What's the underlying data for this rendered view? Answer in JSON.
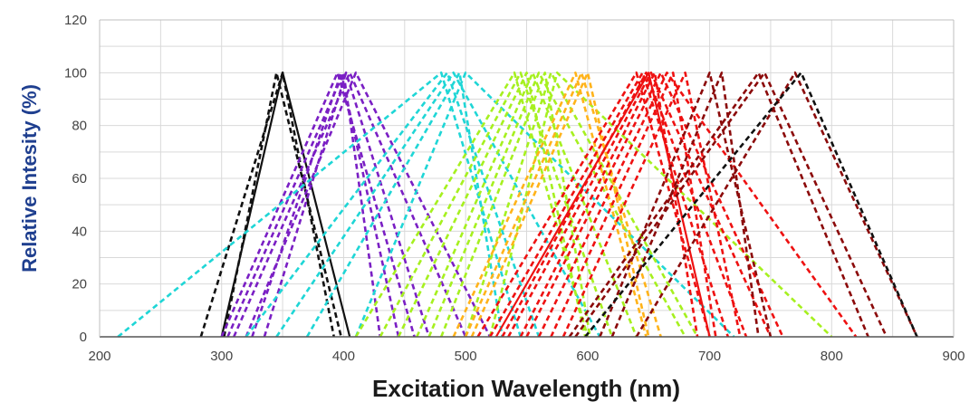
{
  "chart_data": {
    "type": "line",
    "title": "",
    "xlabel": "Excitation Wavelength (nm)",
    "ylabel": "Relative Intesity (%)",
    "xlim": [
      200,
      900
    ],
    "ylim": [
      0,
      120
    ],
    "xticks": [
      200,
      300,
      400,
      500,
      600,
      700,
      800,
      900
    ],
    "yticks": [
      0,
      20,
      40,
      60,
      80,
      100,
      120
    ],
    "grid": true,
    "legend": "none",
    "colors": {
      "axis_title": "#1f3f8f",
      "grid": "#d9d9d9",
      "black": "#111111",
      "purple": "#7a1fc4",
      "cyan": "#1fd6d6",
      "lime": "#a6f01f",
      "orange": "#ffb31a",
      "red": "#ee1111",
      "darkred": "#8b0a0a"
    },
    "series": [
      {
        "color": "black",
        "dashed": true,
        "x": [
          283,
          350,
          392
        ],
        "y": [
          0,
          100,
          0
        ]
      },
      {
        "color": "black",
        "dashed": false,
        "x": [
          300,
          350,
          405
        ],
        "y": [
          0,
          100,
          0
        ]
      },
      {
        "color": "black",
        "dashed": true,
        "x": [
          302,
          345,
          398
        ],
        "y": [
          0,
          100,
          0
        ]
      },
      {
        "color": "purple",
        "dashed": true,
        "x": [
          300,
          395,
          458
        ],
        "y": [
          0,
          100,
          0
        ]
      },
      {
        "color": "purple",
        "dashed": true,
        "x": [
          305,
          400,
          430
        ],
        "y": [
          0,
          100,
          0
        ]
      },
      {
        "color": "purple",
        "dashed": true,
        "x": [
          310,
          405,
          500
        ],
        "y": [
          0,
          100,
          0
        ]
      },
      {
        "color": "purple",
        "dashed": true,
        "x": [
          320,
          410,
          520
        ],
        "y": [
          0,
          100,
          0
        ]
      },
      {
        "color": "purple",
        "dashed": true,
        "x": [
          325,
          398,
          445
        ],
        "y": [
          0,
          100,
          0
        ]
      },
      {
        "color": "purple",
        "dashed": true,
        "x": [
          335,
          402,
          470
        ],
        "y": [
          0,
          100,
          0
        ]
      },
      {
        "color": "cyan",
        "dashed": true,
        "x": [
          215,
          480,
          545
        ],
        "y": [
          0,
          100,
          0
        ]
      },
      {
        "color": "cyan",
        "dashed": true,
        "x": [
          320,
          485,
          560
        ],
        "y": [
          0,
          100,
          0
        ]
      },
      {
        "color": "cyan",
        "dashed": true,
        "x": [
          345,
          490,
          610
        ],
        "y": [
          0,
          100,
          0
        ]
      },
      {
        "color": "cyan",
        "dashed": true,
        "x": [
          370,
          495,
          530
        ],
        "y": [
          0,
          100,
          0
        ]
      },
      {
        "color": "cyan",
        "dashed": true,
        "x": [
          410,
          500,
          720
        ],
        "y": [
          0,
          100,
          0
        ]
      },
      {
        "color": "lime",
        "dashed": true,
        "x": [
          410,
          540,
          600
        ],
        "y": [
          0,
          100,
          0
        ]
      },
      {
        "color": "lime",
        "dashed": true,
        "x": [
          430,
          545,
          620
        ],
        "y": [
          0,
          100,
          0
        ]
      },
      {
        "color": "lime",
        "dashed": true,
        "x": [
          445,
          550,
          598
        ],
        "y": [
          0,
          100,
          0
        ]
      },
      {
        "color": "lime",
        "dashed": true,
        "x": [
          460,
          555,
          640
        ],
        "y": [
          0,
          100,
          0
        ]
      },
      {
        "color": "lime",
        "dashed": true,
        "x": [
          470,
          560,
          680
        ],
        "y": [
          0,
          100,
          0
        ]
      },
      {
        "color": "lime",
        "dashed": true,
        "x": [
          480,
          565,
          602
        ],
        "y": [
          0,
          100,
          0
        ]
      },
      {
        "color": "lime",
        "dashed": true,
        "x": [
          500,
          570,
          690
        ],
        "y": [
          0,
          100,
          0
        ]
      },
      {
        "color": "lime",
        "dashed": true,
        "x": [
          520,
          575,
          800
        ],
        "y": [
          0,
          100,
          0
        ]
      },
      {
        "color": "orange",
        "dashed": true,
        "x": [
          490,
          590,
          648
        ],
        "y": [
          0,
          100,
          0
        ]
      },
      {
        "color": "orange",
        "dashed": true,
        "x": [
          500,
          595,
          660
        ],
        "y": [
          0,
          100,
          0
        ]
      },
      {
        "color": "orange",
        "dashed": true,
        "x": [
          505,
          600,
          650
        ],
        "y": [
          0,
          100,
          0
        ]
      },
      {
        "color": "red",
        "dashed": true,
        "x": [
          510,
          640,
          700
        ],
        "y": [
          0,
          100,
          0
        ]
      },
      {
        "color": "red",
        "dashed": true,
        "x": [
          520,
          645,
          715
        ],
        "y": [
          0,
          100,
          0
        ]
      },
      {
        "color": "red",
        "dashed": false,
        "x": [
          525,
          650,
          700
        ],
        "y": [
          0,
          100,
          0
        ]
      },
      {
        "color": "red",
        "dashed": true,
        "x": [
          530,
          648,
          730
        ],
        "y": [
          0,
          100,
          0
        ]
      },
      {
        "color": "red",
        "dashed": true,
        "x": [
          535,
          652,
          750
        ],
        "y": [
          0,
          100,
          0
        ]
      },
      {
        "color": "red",
        "dashed": true,
        "x": [
          545,
          655,
          690
        ],
        "y": [
          0,
          100,
          0
        ]
      },
      {
        "color": "red",
        "dashed": true,
        "x": [
          550,
          660,
          760
        ],
        "y": [
          0,
          100,
          0
        ]
      },
      {
        "color": "red",
        "dashed": true,
        "x": [
          560,
          665,
          820
        ],
        "y": [
          0,
          100,
          0
        ]
      },
      {
        "color": "red",
        "dashed": true,
        "x": [
          570,
          670,
          705
        ],
        "y": [
          0,
          100,
          0
        ]
      },
      {
        "color": "red",
        "dashed": true,
        "x": [
          580,
          680,
          725
        ],
        "y": [
          0,
          100,
          0
        ]
      },
      {
        "color": "darkred",
        "dashed": true,
        "x": [
          585,
          740,
          830
        ],
        "y": [
          0,
          100,
          0
        ]
      },
      {
        "color": "darkred",
        "dashed": true,
        "x": [
          590,
          745,
          845
        ],
        "y": [
          0,
          100,
          0
        ]
      },
      {
        "color": "darkred",
        "dashed": true,
        "x": [
          610,
          700,
          750
        ],
        "y": [
          0,
          100,
          0
        ]
      },
      {
        "color": "darkred",
        "dashed": true,
        "x": [
          620,
          710,
          740
        ],
        "y": [
          0,
          100,
          0
        ]
      },
      {
        "color": "darkred",
        "dashed": true,
        "x": [
          640,
          770,
          870
        ],
        "y": [
          0,
          100,
          0
        ]
      },
      {
        "color": "black",
        "dashed": true,
        "x": [
          598,
          775,
          870
        ],
        "y": [
          0,
          100,
          0
        ]
      }
    ]
  }
}
